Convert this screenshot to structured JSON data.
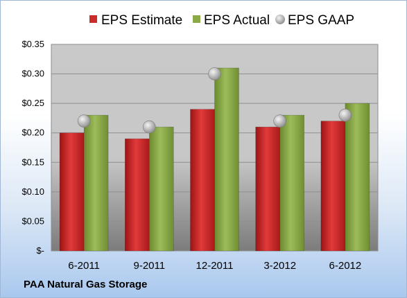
{
  "company": "PAA Natural Gas Storage",
  "chart_data": {
    "type": "bar",
    "categories": [
      "6-2011",
      "9-2011",
      "12-2011",
      "3-2012",
      "6-2012"
    ],
    "series": [
      {
        "name": "EPS Estimate",
        "kind": "bar",
        "color": "#cc2b2b",
        "values": [
          0.2,
          0.19,
          0.24,
          0.21,
          0.22
        ]
      },
      {
        "name": "EPS Actual",
        "kind": "bar",
        "color": "#8aaa45",
        "values": [
          0.23,
          0.21,
          0.31,
          0.23,
          0.25
        ]
      },
      {
        "name": "EPS GAAP",
        "kind": "marker",
        "color": "#b8b8b8",
        "values": [
          0.22,
          0.21,
          0.3,
          0.22,
          0.23
        ]
      }
    ],
    "y_ticks": [
      "$-",
      "$0.05",
      "$0.10",
      "$0.15",
      "$0.20",
      "$0.25",
      "$0.30",
      "$0.35"
    ],
    "ylim": [
      0,
      0.35
    ],
    "grid": true,
    "legend_position": "top"
  }
}
